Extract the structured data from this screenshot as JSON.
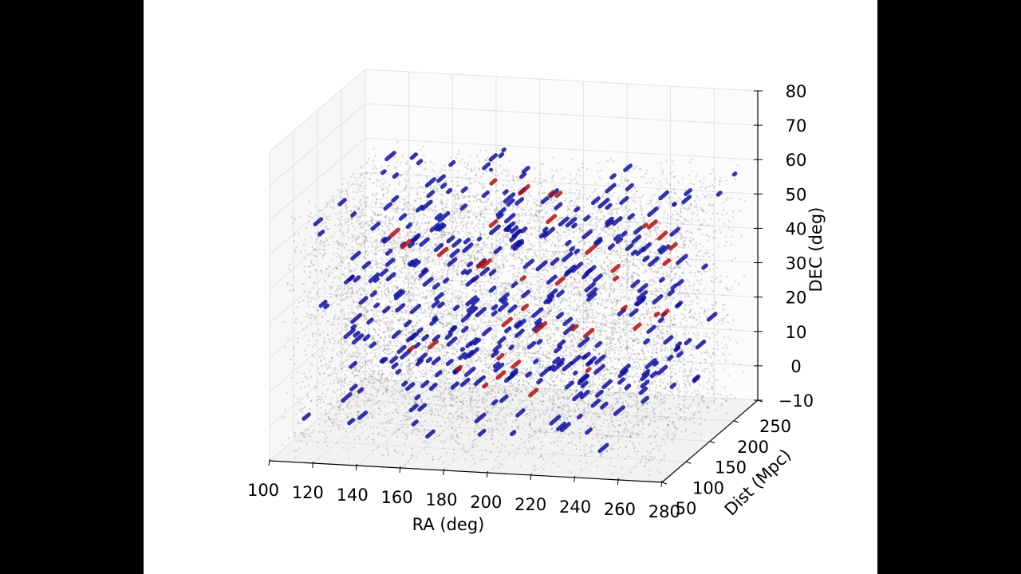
{
  "chart_data": {
    "type": "scatter",
    "projection": "3d",
    "xlabel": "RA (deg)",
    "ylabel": "Dist (Mpc)",
    "zlabel": "DEC (deg)",
    "xlim": [
      100,
      280
    ],
    "ylim": [
      50,
      250
    ],
    "zlim": [
      -10,
      80
    ],
    "x_ticks": [
      "100",
      "120",
      "140",
      "160",
      "180",
      "200",
      "220",
      "240",
      "260",
      "280"
    ],
    "y_ticks": [
      "50",
      "100",
      "150",
      "200",
      "250"
    ],
    "z_ticks": [
      "−10",
      "0",
      "10",
      "20",
      "30",
      "40",
      "50",
      "60",
      "70",
      "80"
    ],
    "grid": true,
    "series_colors": {
      "background": "#555555",
      "blue": "#1010a0",
      "red": "#b01010"
    },
    "series": [
      {
        "color": "#555555",
        "count": 9000,
        "ra_range": [
          105,
          275
        ],
        "dist_range": [
          50,
          250
        ],
        "dec_range": [
          -10,
          60
        ]
      },
      {
        "color": "#1010a0",
        "count": 380,
        "ra_range": [
          110,
          270
        ],
        "dist_range": [
          60,
          250
        ],
        "dec_range": [
          -5,
          60
        ]
      },
      {
        "color": "#b01010",
        "count": 40,
        "ra_range": [
          130,
          260
        ],
        "dist_range": [
          60,
          240
        ],
        "dec_range": [
          0,
          55
        ]
      }
    ]
  }
}
